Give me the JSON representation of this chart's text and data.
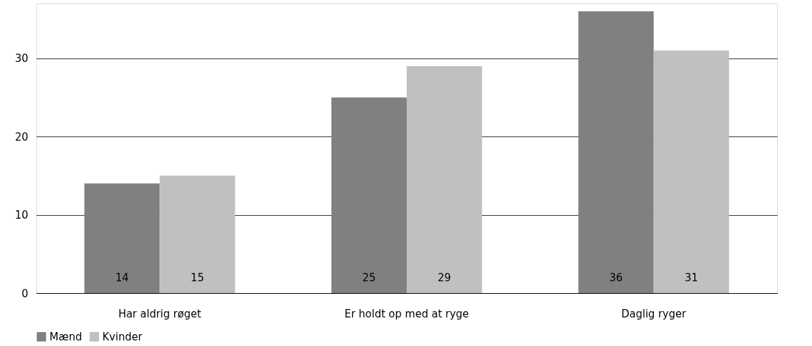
{
  "chart_data": {
    "type": "bar",
    "categories": [
      "Har aldrig røget",
      "Er holdt op med at ryge",
      "Daglig ryger"
    ],
    "series": [
      {
        "name": "Mænd",
        "color": "#808080",
        "values": [
          14,
          25,
          36
        ]
      },
      {
        "name": "Kvinder",
        "color": "#c0c0c0",
        "values": [
          15,
          29,
          31
        ]
      }
    ],
    "ylim": [
      0,
      37
    ],
    "yticks": [
      0,
      10,
      20,
      30
    ],
    "grid": "y",
    "legend": "bottom",
    "data_labels": true
  }
}
